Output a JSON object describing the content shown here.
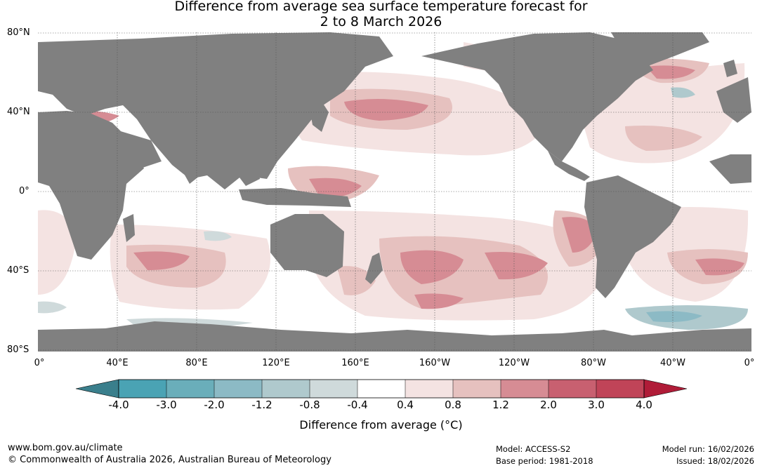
{
  "title_line1": "Difference from average sea surface temperature forecast for",
  "title_line2": "2 to 8 March 2026",
  "lat_labels": [
    "80°N",
    "40°N",
    "0°",
    "40°S",
    "80°S"
  ],
  "lon_labels": [
    "0°",
    "40°E",
    "80°E",
    "120°E",
    "160°E",
    "160°W",
    "120°W",
    "80°W",
    "40°W",
    "0°"
  ],
  "colorbar": {
    "ticks": [
      "-4.0",
      "-3.0",
      "-2.0",
      "-1.2",
      "-0.8",
      "-0.4",
      "0.4",
      "0.8",
      "1.2",
      "2.0",
      "3.0",
      "4.0"
    ],
    "colors": [
      "#3a7f8c",
      "#4aa3b4",
      "#6aaeba",
      "#8cbac5",
      "#afc9cd",
      "#cfdadb",
      "#ffffff",
      "#f4e3e2",
      "#e6c1bf",
      "#d68c94",
      "#c86070",
      "#c04458",
      "#b01c38"
    ],
    "label": "Difference from average (°C)"
  },
  "colors": {
    "land": "#808080",
    "ocean_neutral": "#ffffff",
    "warm_light": "#f4e3e2",
    "warm_mid": "#e6c1bf",
    "warm_strong": "#d68c94",
    "cool_light": "#cfdadb",
    "cool_mid": "#8cbac5"
  },
  "footer": {
    "website": "www.bom.gov.au/climate",
    "copyright": "© Commonwealth of Australia 2026, Australian Bureau of Meteorology",
    "model": "Model: ACCESS-S2",
    "base_period": "Base period: 1981-2018",
    "model_run": "Model run: 16/02/2026",
    "issued": "Issued: 18/02/2026"
  }
}
